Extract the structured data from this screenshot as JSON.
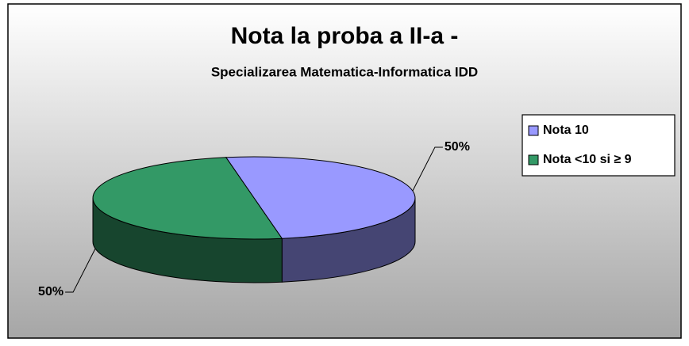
{
  "chart_data": {
    "type": "pie",
    "title": "Nota la proba a II-a -",
    "subtitle": "Specializarea Matematica-Informatica IDD",
    "categories": [
      "Nota 10",
      "Nota <10 si ≥ 9"
    ],
    "values": [
      50,
      50
    ],
    "value_labels": [
      "50%",
      "50%"
    ],
    "colors": [
      "#9999ff",
      "#339966"
    ],
    "legend": "right"
  }
}
